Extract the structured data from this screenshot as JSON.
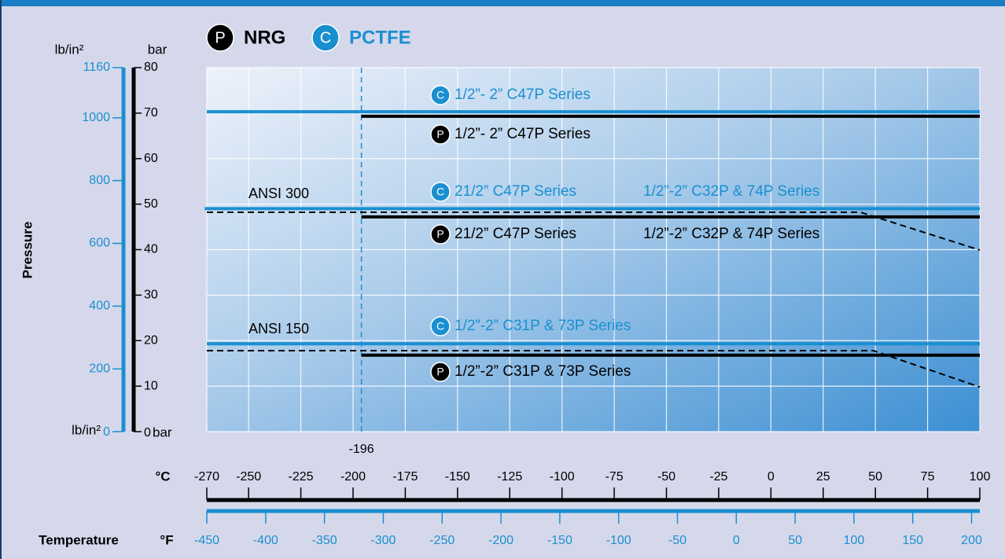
{
  "chart_data": {
    "type": "line",
    "legend": [
      {
        "badge": "P",
        "name": "NRG",
        "color": "#000000"
      },
      {
        "badge": "C",
        "name": "PCTFE",
        "color": "#1a8fd0"
      }
    ],
    "ylabel": "Pressure",
    "xlabel": "Temperature",
    "y_unit": "lb/in²",
    "y2_unit": "bar",
    "x_unit": "°C",
    "x2_unit": "°F",
    "xlim": [
      -270,
      100
    ],
    "xticks": [
      -270,
      -250,
      -225,
      -200,
      -175,
      -150,
      -125,
      -100,
      -75,
      -50,
      -25,
      0,
      25,
      50,
      75,
      100
    ],
    "x2lim": [
      -450,
      207
    ],
    "x2ticks": [
      -450,
      -400,
      -350,
      -300,
      -250,
      -200,
      -150,
      -100,
      -50,
      0,
      50,
      100,
      150,
      200
    ],
    "ylim": [
      0,
      1160
    ],
    "yticks": [
      0,
      200,
      400,
      600,
      800,
      1000,
      1160
    ],
    "y2lim": [
      0,
      80
    ],
    "y2ticks": [
      0,
      10,
      20,
      30,
      40,
      50,
      60,
      70,
      80
    ],
    "grid": true,
    "reference_x": -196,
    "series": [
      {
        "color": "#1a8fd0",
        "axis": "y2",
        "dashed": false,
        "x": [
          -270,
          100
        ],
        "values": [
          70.3,
          70.3
        ]
      },
      {
        "color": "#000000",
        "axis": "y2",
        "dashed": false,
        "x": [
          -196,
          100
        ],
        "values": [
          69.3,
          69.3
        ]
      },
      {
        "color": "#1a8fd0",
        "axis": "y2",
        "dashed": false,
        "x": [
          -271,
          100
        ],
        "values": [
          49.0,
          49.0
        ]
      },
      {
        "color": "#000000",
        "axis": "y2",
        "dashed": true,
        "x": [
          -270,
          43,
          100
        ],
        "values": [
          48.2,
          48.2,
          39.9
        ]
      },
      {
        "color": "#000000",
        "axis": "y2",
        "dashed": false,
        "x": [
          -196,
          100
        ],
        "values": [
          47.2,
          47.2
        ]
      },
      {
        "color": "#1a8fd0",
        "axis": "y2",
        "dashed": false,
        "x": [
          -270,
          100
        ],
        "values": [
          19.3,
          19.3
        ]
      },
      {
        "color": "#000000",
        "axis": "y2",
        "dashed": true,
        "x": [
          -270,
          49,
          100
        ],
        "values": [
          17.8,
          17.8,
          9.8
        ]
      },
      {
        "color": "#000000",
        "axis": "y2",
        "dashed": false,
        "x": [
          -196,
          100
        ],
        "values": [
          16.8,
          16.8
        ]
      }
    ],
    "class_labels": [
      "ANSI 300",
      "ANSI 150"
    ],
    "annotations": [
      {
        "badge": "C",
        "text": "1/2”- 2” C47P Series",
        "color": "#1a8fd0"
      },
      {
        "badge": "P",
        "text": "1/2”- 2” C47P Series",
        "color": "#000000"
      },
      {
        "badge": "C",
        "text": "21/2” C47P Series",
        "color": "#1a8fd0"
      },
      {
        "text": "1/2”-2” C32P & 74P Series",
        "color": "#1a8fd0"
      },
      {
        "badge": "P",
        "text": "21/2” C47P Series",
        "color": "#000000"
      },
      {
        "text": "1/2”-2” C32P & 74P Series",
        "color": "#000000"
      },
      {
        "badge": "C",
        "text": "1/2”-2” C31P & 73P Series",
        "color": "#1a8fd0"
      },
      {
        "badge": "P",
        "text": "1/2”-2” C31P & 73P Series",
        "color": "#000000"
      }
    ]
  }
}
